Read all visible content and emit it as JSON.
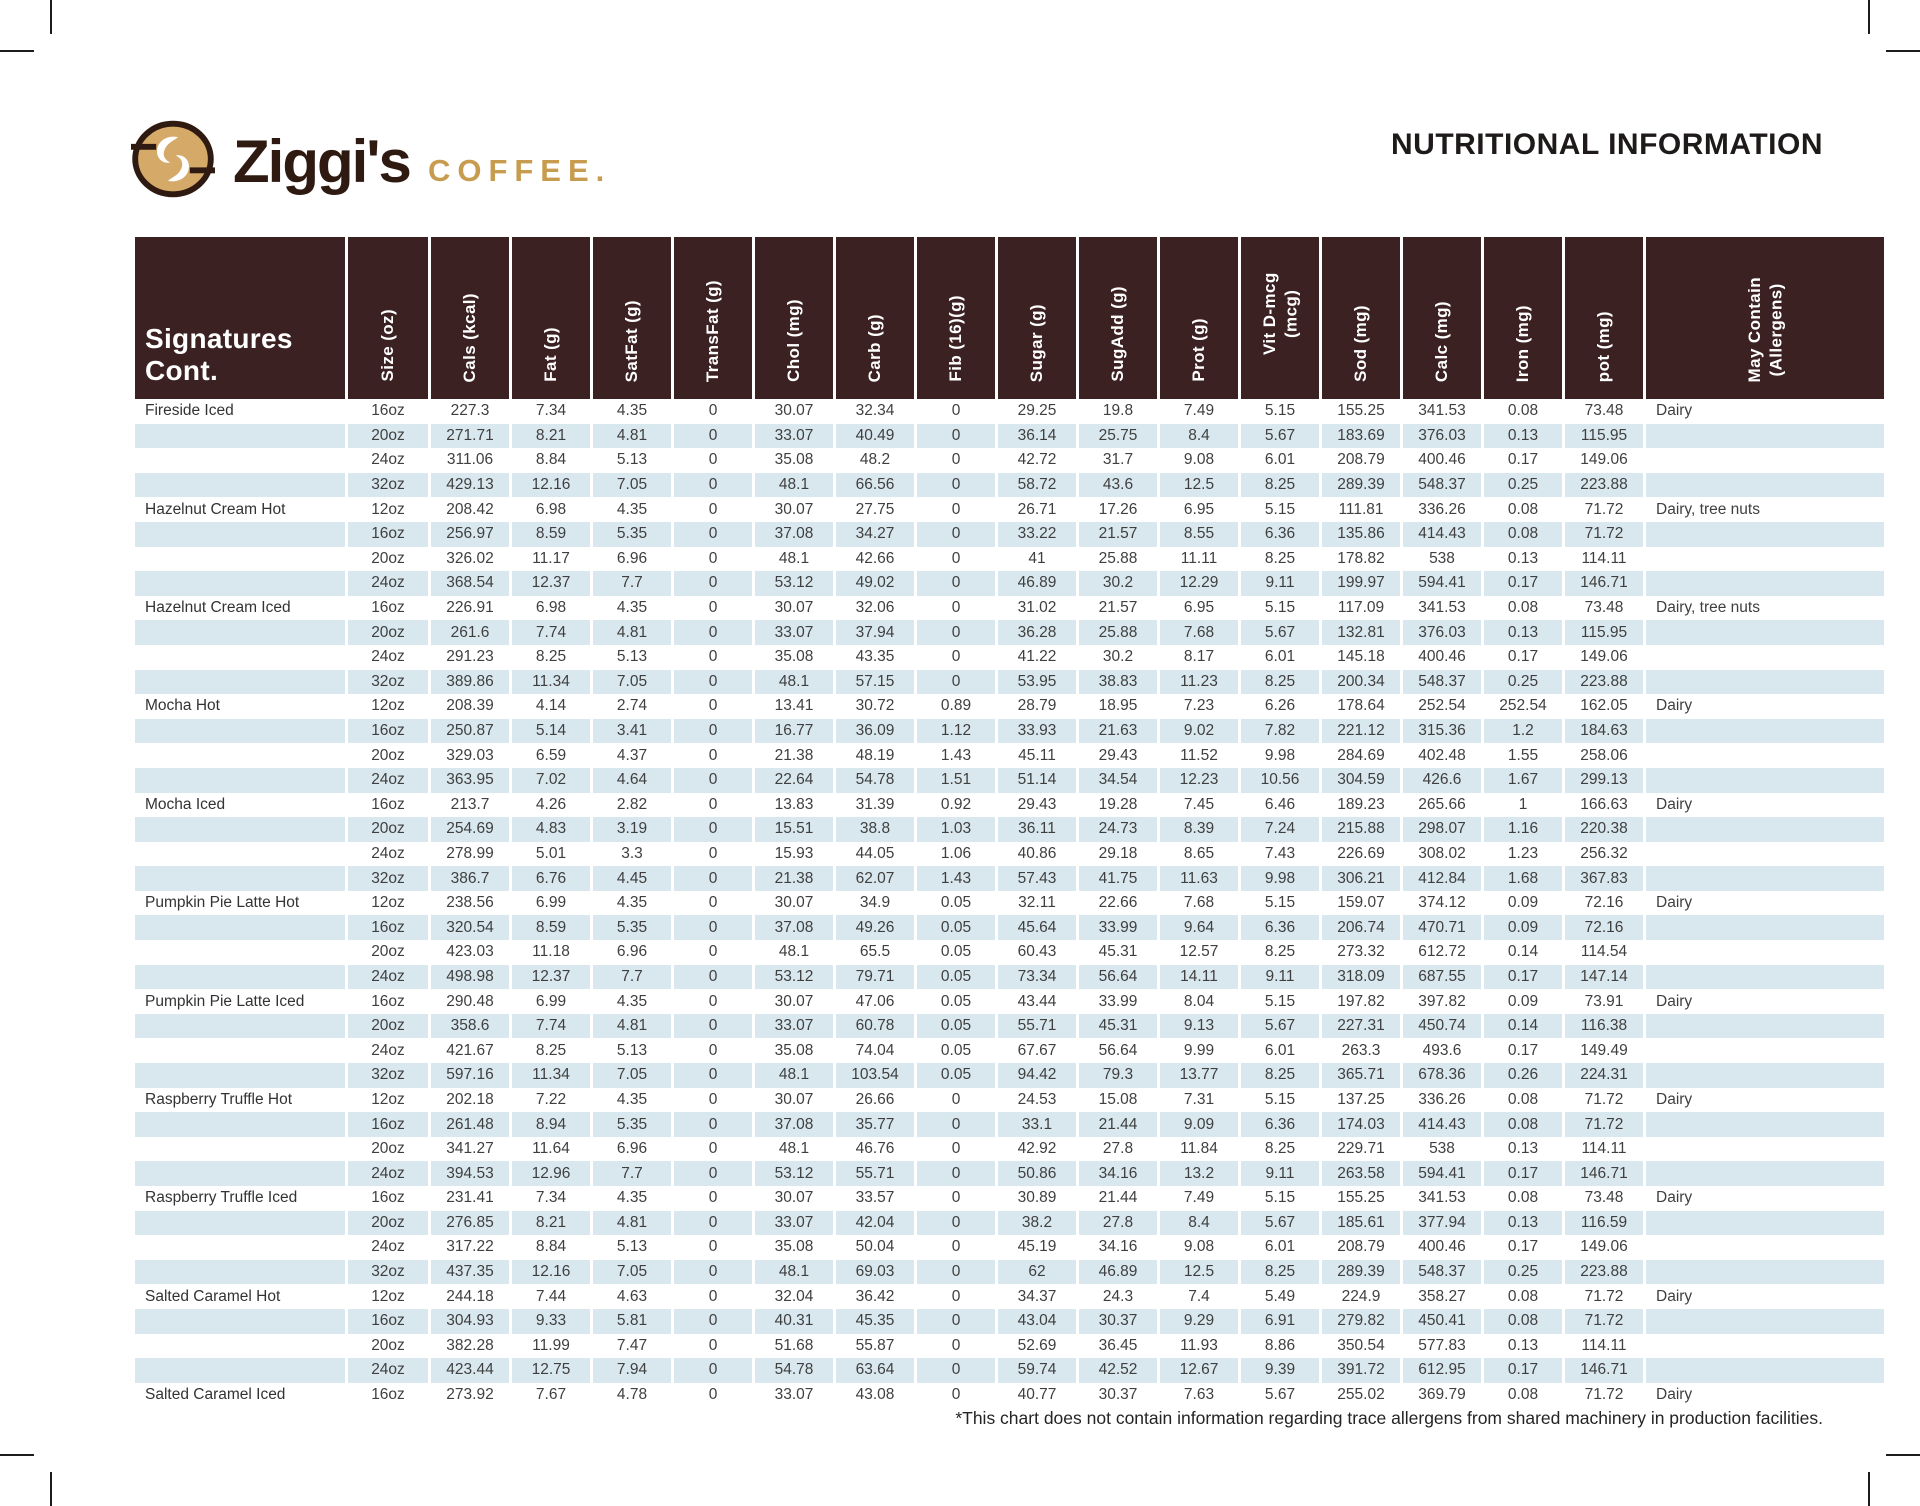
{
  "page": {
    "title": "NUTRITIONAL INFORMATION",
    "footnote": "*This chart does not contain information regarding trace allergens from shared machinery in production facilities."
  },
  "brand": {
    "name": "Ziggi's",
    "word": "COFFEE."
  },
  "colors": {
    "header_brown": "#3B2122",
    "row_blue": "#D9E8EF",
    "gold": "#C79C4E",
    "logo_brown": "#2E1A10"
  },
  "table": {
    "first_header": "Signatures Cont.",
    "columns": [
      "Size (oz)",
      "Cals (kcal)",
      "Fat (g)",
      "SatFat (g)",
      "TransFat (g)",
      "Chol (mg)",
      "Carb (g)",
      "Fib (16)(g)",
      "Sugar (g)",
      "SugAdd (g)",
      "Prot (g)",
      "Vit D-mcg (mcg)",
      "Sod (mg)",
      "Calc (mg)",
      "Iron (mg)",
      "pot (mg)",
      "May Contain\n(Allergens)"
    ],
    "rows": [
      [
        "Fireside Iced",
        "16oz",
        "227.3",
        "7.34",
        "4.35",
        "0",
        "30.07",
        "32.34",
        "0",
        "29.25",
        "19.8",
        "7.49",
        "5.15",
        "155.25",
        "341.53",
        "0.08",
        "73.48",
        "Dairy"
      ],
      [
        "",
        "20oz",
        "271.71",
        "8.21",
        "4.81",
        "0",
        "33.07",
        "40.49",
        "0",
        "36.14",
        "25.75",
        "8.4",
        "5.67",
        "183.69",
        "376.03",
        "0.13",
        "115.95",
        ""
      ],
      [
        "",
        "24oz",
        "311.06",
        "8.84",
        "5.13",
        "0",
        "35.08",
        "48.2",
        "0",
        "42.72",
        "31.7",
        "9.08",
        "6.01",
        "208.79",
        "400.46",
        "0.17",
        "149.06",
        ""
      ],
      [
        "",
        "32oz",
        "429.13",
        "12.16",
        "7.05",
        "0",
        "48.1",
        "66.56",
        "0",
        "58.72",
        "43.6",
        "12.5",
        "8.25",
        "289.39",
        "548.37",
        "0.25",
        "223.88",
        ""
      ],
      [
        "Hazelnut Cream Hot",
        "12oz",
        "208.42",
        "6.98",
        "4.35",
        "0",
        "30.07",
        "27.75",
        "0",
        "26.71",
        "17.26",
        "6.95",
        "5.15",
        "111.81",
        "336.26",
        "0.08",
        "71.72",
        "Dairy, tree nuts"
      ],
      [
        "",
        "16oz",
        "256.97",
        "8.59",
        "5.35",
        "0",
        "37.08",
        "34.27",
        "0",
        "33.22",
        "21.57",
        "8.55",
        "6.36",
        "135.86",
        "414.43",
        "0.08",
        "71.72",
        ""
      ],
      [
        "",
        "20oz",
        "326.02",
        "11.17",
        "6.96",
        "0",
        "48.1",
        "42.66",
        "0",
        "41",
        "25.88",
        "11.11",
        "8.25",
        "178.82",
        "538",
        "0.13",
        "114.11",
        ""
      ],
      [
        "",
        "24oz",
        "368.54",
        "12.37",
        "7.7",
        "0",
        "53.12",
        "49.02",
        "0",
        "46.89",
        "30.2",
        "12.29",
        "9.11",
        "199.97",
        "594.41",
        "0.17",
        "146.71",
        ""
      ],
      [
        "Hazelnut Cream Iced",
        "16oz",
        "226.91",
        "6.98",
        "4.35",
        "0",
        "30.07",
        "32.06",
        "0",
        "31.02",
        "21.57",
        "6.95",
        "5.15",
        "117.09",
        "341.53",
        "0.08",
        "73.48",
        "Dairy, tree nuts"
      ],
      [
        "",
        "20oz",
        "261.6",
        "7.74",
        "4.81",
        "0",
        "33.07",
        "37.94",
        "0",
        "36.28",
        "25.88",
        "7.68",
        "5.67",
        "132.81",
        "376.03",
        "0.13",
        "115.95",
        ""
      ],
      [
        "",
        "24oz",
        "291.23",
        "8.25",
        "5.13",
        "0",
        "35.08",
        "43.35",
        "0",
        "41.22",
        "30.2",
        "8.17",
        "6.01",
        "145.18",
        "400.46",
        "0.17",
        "149.06",
        ""
      ],
      [
        "",
        "32oz",
        "389.86",
        "11.34",
        "7.05",
        "0",
        "48.1",
        "57.15",
        "0",
        "53.95",
        "38.83",
        "11.23",
        "8.25",
        "200.34",
        "548.37",
        "0.25",
        "223.88",
        ""
      ],
      [
        "Mocha Hot",
        "12oz",
        "208.39",
        "4.14",
        "2.74",
        "0",
        "13.41",
        "30.72",
        "0.89",
        "28.79",
        "18.95",
        "7.23",
        "6.26",
        "178.64",
        "252.54",
        "252.54",
        "162.05",
        "Dairy"
      ],
      [
        "",
        "16oz",
        "250.87",
        "5.14",
        "3.41",
        "0",
        "16.77",
        "36.09",
        "1.12",
        "33.93",
        "21.63",
        "9.02",
        "7.82",
        "221.12",
        "315.36",
        "1.2",
        "184.63",
        ""
      ],
      [
        "",
        "20oz",
        "329.03",
        "6.59",
        "4.37",
        "0",
        "21.38",
        "48.19",
        "1.43",
        "45.11",
        "29.43",
        "11.52",
        "9.98",
        "284.69",
        "402.48",
        "1.55",
        "258.06",
        ""
      ],
      [
        "",
        "24oz",
        "363.95",
        "7.02",
        "4.64",
        "0",
        "22.64",
        "54.78",
        "1.51",
        "51.14",
        "34.54",
        "12.23",
        "10.56",
        "304.59",
        "426.6",
        "1.67",
        "299.13",
        ""
      ],
      [
        "Mocha Iced",
        "16oz",
        "213.7",
        "4.26",
        "2.82",
        "0",
        "13.83",
        "31.39",
        "0.92",
        "29.43",
        "19.28",
        "7.45",
        "6.46",
        "189.23",
        "265.66",
        "1",
        "166.63",
        "Dairy"
      ],
      [
        "",
        "20oz",
        "254.69",
        "4.83",
        "3.19",
        "0",
        "15.51",
        "38.8",
        "1.03",
        "36.11",
        "24.73",
        "8.39",
        "7.24",
        "215.88",
        "298.07",
        "1.16",
        "220.38",
        ""
      ],
      [
        "",
        "24oz",
        "278.99",
        "5.01",
        "3.3",
        "0",
        "15.93",
        "44.05",
        "1.06",
        "40.86",
        "29.18",
        "8.65",
        "7.43",
        "226.69",
        "308.02",
        "1.23",
        "256.32",
        ""
      ],
      [
        "",
        "32oz",
        "386.7",
        "6.76",
        "4.45",
        "0",
        "21.38",
        "62.07",
        "1.43",
        "57.43",
        "41.75",
        "11.63",
        "9.98",
        "306.21",
        "412.84",
        "1.68",
        "367.83",
        ""
      ],
      [
        "Pumpkin Pie Latte Hot",
        "12oz",
        "238.56",
        "6.99",
        "4.35",
        "0",
        "30.07",
        "34.9",
        "0.05",
        "32.11",
        "22.66",
        "7.68",
        "5.15",
        "159.07",
        "374.12",
        "0.09",
        "72.16",
        "Dairy"
      ],
      [
        "",
        "16oz",
        "320.54",
        "8.59",
        "5.35",
        "0",
        "37.08",
        "49.26",
        "0.05",
        "45.64",
        "33.99",
        "9.64",
        "6.36",
        "206.74",
        "470.71",
        "0.09",
        "72.16",
        ""
      ],
      [
        "",
        "20oz",
        "423.03",
        "11.18",
        "6.96",
        "0",
        "48.1",
        "65.5",
        "0.05",
        "60.43",
        "45.31",
        "12.57",
        "8.25",
        "273.32",
        "612.72",
        "0.14",
        "114.54",
        ""
      ],
      [
        "",
        "24oz",
        "498.98",
        "12.37",
        "7.7",
        "0",
        "53.12",
        "79.71",
        "0.05",
        "73.34",
        "56.64",
        "14.11",
        "9.11",
        "318.09",
        "687.55",
        "0.17",
        "147.14",
        ""
      ],
      [
        "Pumpkin Pie Latte Iced",
        "16oz",
        "290.48",
        "6.99",
        "4.35",
        "0",
        "30.07",
        "47.06",
        "0.05",
        "43.44",
        "33.99",
        "8.04",
        "5.15",
        "197.82",
        "397.82",
        "0.09",
        "73.91",
        "Dairy"
      ],
      [
        "",
        "20oz",
        "358.6",
        "7.74",
        "4.81",
        "0",
        "33.07",
        "60.78",
        "0.05",
        "55.71",
        "45.31",
        "9.13",
        "5.67",
        "227.31",
        "450.74",
        "0.14",
        "116.38",
        ""
      ],
      [
        "",
        "24oz",
        "421.67",
        "8.25",
        "5.13",
        "0",
        "35.08",
        "74.04",
        "0.05",
        "67.67",
        "56.64",
        "9.99",
        "6.01",
        "263.3",
        "493.6",
        "0.17",
        "149.49",
        ""
      ],
      [
        "",
        "32oz",
        "597.16",
        "11.34",
        "7.05",
        "0",
        "48.1",
        "103.54",
        "0.05",
        "94.42",
        "79.3",
        "13.77",
        "8.25",
        "365.71",
        "678.36",
        "0.26",
        "224.31",
        ""
      ],
      [
        "Raspberry Truffle Hot",
        "12oz",
        "202.18",
        "7.22",
        "4.35",
        "0",
        "30.07",
        "26.66",
        "0",
        "24.53",
        "15.08",
        "7.31",
        "5.15",
        "137.25",
        "336.26",
        "0.08",
        "71.72",
        "Dairy"
      ],
      [
        "",
        "16oz",
        "261.48",
        "8.94",
        "5.35",
        "0",
        "37.08",
        "35.77",
        "0",
        "33.1",
        "21.44",
        "9.09",
        "6.36",
        "174.03",
        "414.43",
        "0.08",
        "71.72",
        ""
      ],
      [
        "",
        "20oz",
        "341.27",
        "11.64",
        "6.96",
        "0",
        "48.1",
        "46.76",
        "0",
        "42.92",
        "27.8",
        "11.84",
        "8.25",
        "229.71",
        "538",
        "0.13",
        "114.11",
        ""
      ],
      [
        "",
        "24oz",
        "394.53",
        "12.96",
        "7.7",
        "0",
        "53.12",
        "55.71",
        "0",
        "50.86",
        "34.16",
        "13.2",
        "9.11",
        "263.58",
        "594.41",
        "0.17",
        "146.71",
        ""
      ],
      [
        "Raspberry Truffle Iced",
        "16oz",
        "231.41",
        "7.34",
        "4.35",
        "0",
        "30.07",
        "33.57",
        "0",
        "30.89",
        "21.44",
        "7.49",
        "5.15",
        "155.25",
        "341.53",
        "0.08",
        "73.48",
        "Dairy"
      ],
      [
        "",
        "20oz",
        "276.85",
        "8.21",
        "4.81",
        "0",
        "33.07",
        "42.04",
        "0",
        "38.2",
        "27.8",
        "8.4",
        "5.67",
        "185.61",
        "377.94",
        "0.13",
        "116.59",
        ""
      ],
      [
        "",
        "24oz",
        "317.22",
        "8.84",
        "5.13",
        "0",
        "35.08",
        "50.04",
        "0",
        "45.19",
        "34.16",
        "9.08",
        "6.01",
        "208.79",
        "400.46",
        "0.17",
        "149.06",
        ""
      ],
      [
        "",
        "32oz",
        "437.35",
        "12.16",
        "7.05",
        "0",
        "48.1",
        "69.03",
        "0",
        "62",
        "46.89",
        "12.5",
        "8.25",
        "289.39",
        "548.37",
        "0.25",
        "223.88",
        ""
      ],
      [
        "Salted Caramel Hot",
        "12oz",
        "244.18",
        "7.44",
        "4.63",
        "0",
        "32.04",
        "36.42",
        "0",
        "34.37",
        "24.3",
        "7.4",
        "5.49",
        "224.9",
        "358.27",
        "0.08",
        "71.72",
        "Dairy"
      ],
      [
        "",
        "16oz",
        "304.93",
        "9.33",
        "5.81",
        "0",
        "40.31",
        "45.35",
        "0",
        "43.04",
        "30.37",
        "9.29",
        "6.91",
        "279.82",
        "450.41",
        "0.08",
        "71.72",
        ""
      ],
      [
        "",
        "20oz",
        "382.28",
        "11.99",
        "7.47",
        "0",
        "51.68",
        "55.87",
        "0",
        "52.69",
        "36.45",
        "11.93",
        "8.86",
        "350.54",
        "577.83",
        "0.13",
        "114.11",
        ""
      ],
      [
        "",
        "24oz",
        "423.44",
        "12.75",
        "7.94",
        "0",
        "54.78",
        "63.64",
        "0",
        "59.74",
        "42.52",
        "12.67",
        "9.39",
        "391.72",
        "612.95",
        "0.17",
        "146.71",
        ""
      ],
      [
        "Salted Caramel Iced",
        "16oz",
        "273.92",
        "7.67",
        "4.78",
        "0",
        "33.07",
        "43.08",
        "0",
        "40.77",
        "30.37",
        "7.63",
        "5.67",
        "255.02",
        "369.79",
        "0.08",
        "71.72",
        "Dairy"
      ]
    ]
  }
}
